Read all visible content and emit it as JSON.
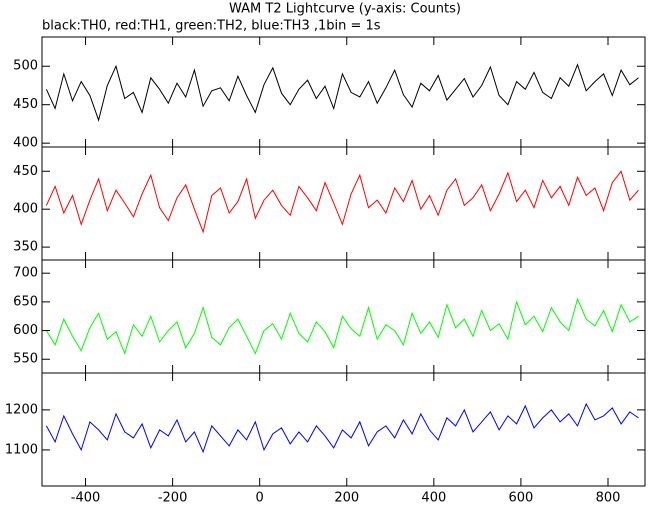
{
  "chart_data": [
    {
      "type": "line",
      "title": "WAM T2 Lightcurve (y-axis: Counts)",
      "subtitle": "black:TH0, red:TH1, green:TH2, blue:TH3 ,1bin = 1s",
      "x": [
        -490,
        -470,
        -450,
        -430,
        -410,
        -390,
        -370,
        -350,
        -330,
        -310,
        -290,
        -270,
        -250,
        -230,
        -210,
        -190,
        -170,
        -150,
        -130,
        -110,
        -90,
        -70,
        -50,
        -30,
        -10,
        10,
        30,
        50,
        70,
        90,
        110,
        130,
        150,
        170,
        190,
        210,
        230,
        250,
        270,
        290,
        310,
        330,
        350,
        370,
        390,
        410,
        430,
        450,
        470,
        490,
        510,
        530,
        550,
        570,
        590,
        610,
        630,
        650,
        670,
        690,
        710,
        730,
        750,
        770,
        790,
        810,
        830,
        850,
        870
      ],
      "series": [
        {
          "color": "#000000",
          "values": [
            470,
            445,
            490,
            455,
            480,
            462,
            430,
            475,
            500,
            458,
            466,
            440,
            485,
            470,
            452,
            478,
            460,
            495,
            448,
            468,
            472,
            455,
            487,
            462,
            440,
            476,
            498,
            465,
            450,
            470,
            482,
            458,
            474,
            445,
            490,
            466,
            460,
            480,
            452,
            472,
            495,
            463,
            447,
            478,
            468,
            488,
            456,
            470,
            484,
            460,
            475,
            499,
            462,
            450,
            480,
            470,
            492,
            466,
            458,
            485,
            474,
            502,
            468,
            480,
            490,
            462,
            495,
            476,
            485
          ]
        }
      ],
      "xlim": [
        -500,
        885
      ],
      "xticks": [
        -400,
        -200,
        0,
        200,
        400,
        600,
        800
      ],
      "ylim": [
        395,
        538
      ],
      "yticks": [
        400,
        450,
        500
      ]
    },
    {
      "type": "line",
      "x": [
        -490,
        -470,
        -450,
        -430,
        -410,
        -390,
        -370,
        -350,
        -330,
        -310,
        -290,
        -270,
        -250,
        -230,
        -210,
        -190,
        -170,
        -150,
        -130,
        -110,
        -90,
        -70,
        -50,
        -30,
        -10,
        10,
        30,
        50,
        70,
        90,
        110,
        130,
        150,
        170,
        190,
        210,
        230,
        250,
        270,
        290,
        310,
        330,
        350,
        370,
        390,
        410,
        430,
        450,
        470,
        490,
        510,
        530,
        550,
        570,
        590,
        610,
        630,
        650,
        670,
        690,
        710,
        730,
        750,
        770,
        790,
        810,
        830,
        850,
        870
      ],
      "series": [
        {
          "color": "#ff0000",
          "values": [
            405,
            430,
            395,
            418,
            380,
            412,
            440,
            398,
            425,
            408,
            390,
            420,
            445,
            402,
            385,
            415,
            432,
            400,
            370,
            418,
            428,
            395,
            410,
            440,
            388,
            412,
            425,
            405,
            392,
            430,
            415,
            398,
            435,
            408,
            380,
            420,
            445,
            402,
            412,
            395,
            428,
            410,
            438,
            400,
            418,
            392,
            425,
            440,
            405,
            415,
            432,
            398,
            420,
            448,
            410,
            425,
            402,
            438,
            415,
            430,
            405,
            442,
            418,
            428,
            398,
            435,
            450,
            412,
            425
          ]
        }
      ],
      "xlim": [
        -500,
        885
      ],
      "xticks": [
        -400,
        -200,
        0,
        200,
        400,
        600,
        800
      ],
      "ylim": [
        333,
        482
      ],
      "yticks": [
        350,
        400,
        450
      ]
    },
    {
      "type": "line",
      "x": [
        -490,
        -470,
        -450,
        -430,
        -410,
        -390,
        -370,
        -350,
        -330,
        -310,
        -290,
        -270,
        -250,
        -230,
        -210,
        -190,
        -170,
        -150,
        -130,
        -110,
        -90,
        -70,
        -50,
        -30,
        -10,
        10,
        30,
        50,
        70,
        90,
        110,
        130,
        150,
        170,
        190,
        210,
        230,
        250,
        270,
        290,
        310,
        330,
        350,
        370,
        390,
        410,
        430,
        450,
        470,
        490,
        510,
        530,
        550,
        570,
        590,
        610,
        630,
        650,
        670,
        690,
        710,
        730,
        750,
        770,
        790,
        810,
        830,
        850,
        870
      ],
      "series": [
        {
          "color": "#00ff00",
          "values": [
            600,
            575,
            620,
            590,
            565,
            605,
            630,
            585,
            598,
            560,
            610,
            590,
            625,
            580,
            600,
            615,
            570,
            595,
            640,
            588,
            575,
            605,
            620,
            590,
            560,
            600,
            612,
            585,
            630,
            595,
            580,
            615,
            598,
            570,
            625,
            603,
            590,
            640,
            585,
            610,
            600,
            575,
            630,
            595,
            615,
            588,
            645,
            605,
            620,
            590,
            635,
            600,
            612,
            585,
            650,
            610,
            625,
            598,
            640,
            615,
            600,
            655,
            620,
            608,
            635,
            598,
            645,
            615,
            625
          ]
        }
      ],
      "xlim": [
        -500,
        885
      ],
      "xticks": [
        -400,
        -200,
        0,
        200,
        400,
        600,
        800
      ],
      "ylim": [
        526,
        723
      ],
      "yticks": [
        550,
        600,
        650,
        700
      ]
    },
    {
      "type": "line",
      "x": [
        -490,
        -470,
        -450,
        -430,
        -410,
        -390,
        -370,
        -350,
        -330,
        -310,
        -290,
        -270,
        -250,
        -230,
        -210,
        -190,
        -170,
        -150,
        -130,
        -110,
        -90,
        -70,
        -50,
        -30,
        -10,
        10,
        30,
        50,
        70,
        90,
        110,
        130,
        150,
        170,
        190,
        210,
        230,
        250,
        270,
        290,
        310,
        330,
        350,
        370,
        390,
        410,
        430,
        450,
        470,
        490,
        510,
        530,
        550,
        570,
        590,
        610,
        630,
        650,
        670,
        690,
        710,
        730,
        750,
        770,
        790,
        810,
        830,
        850,
        870
      ],
      "series": [
        {
          "color": "#0000ff",
          "values": [
            1160,
            1120,
            1185,
            1140,
            1100,
            1170,
            1150,
            1125,
            1190,
            1145,
            1130,
            1165,
            1105,
            1150,
            1135,
            1175,
            1120,
            1145,
            1095,
            1160,
            1135,
            1110,
            1150,
            1125,
            1170,
            1100,
            1140,
            1155,
            1115,
            1145,
            1120,
            1160,
            1135,
            1105,
            1150,
            1130,
            1170,
            1110,
            1145,
            1160,
            1130,
            1175,
            1140,
            1190,
            1150,
            1125,
            1180,
            1160,
            1200,
            1145,
            1170,
            1195,
            1150,
            1185,
            1165,
            1210,
            1155,
            1180,
            1200,
            1170,
            1190,
            1160,
            1215,
            1175,
            1185,
            1205,
            1165,
            1195,
            1180
          ]
        }
      ],
      "xlim": [
        -500,
        885
      ],
      "xticks": [
        -400,
        -200,
        0,
        200,
        400,
        600,
        800
      ],
      "ylim": [
        1010,
        1292
      ],
      "yticks": [
        1100,
        1200
      ]
    }
  ]
}
